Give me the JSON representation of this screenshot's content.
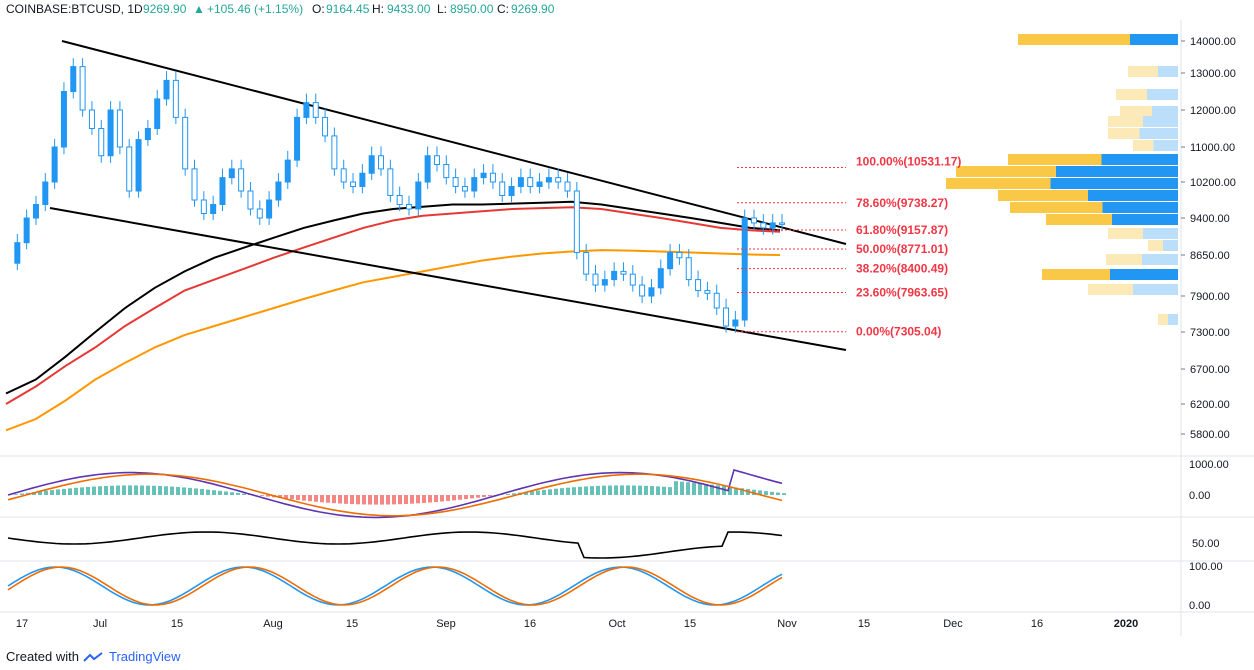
{
  "header": {
    "symbol": "COINBASE:BTCUSD, 1D",
    "last": "9269.90",
    "change": "+105.46 (+1.15%)",
    "o_label": "O:",
    "o_value": "9164.45",
    "h_label": "H:",
    "h_value": "9433.00",
    "l_label": "L:",
    "l_value": "8950.00",
    "c_label": "C:",
    "c_value": "9269.90",
    "up_color": "#26a69a"
  },
  "footer": {
    "created_with": "Created with",
    "brand": "TradingView"
  },
  "chart_data": {
    "type": "candlestick",
    "price_axis_ticks": [
      "14000.00",
      "13000.00",
      "12000.00",
      "11000.00",
      "10200.00",
      "9400.00",
      "8650.00",
      "7900.00",
      "7300.00",
      "6700.00",
      "6200.00",
      "5800.00"
    ],
    "price_axis_values": [
      14000,
      13000,
      12000,
      11000,
      10200,
      9400,
      8650,
      7900,
      7300,
      6700,
      6200,
      5800
    ],
    "time_axis_labels": [
      "17",
      "Jul",
      "15",
      "Aug",
      "15",
      "Sep",
      "16",
      "Oct",
      "15",
      "Nov",
      "15",
      "Dec",
      "16",
      "2020"
    ],
    "fibonacci": [
      {
        "label": "100.00%(10531.17)",
        "value": 10531.17
      },
      {
        "label": "78.60%(9738.27)",
        "value": 9738.27
      },
      {
        "label": "61.80%(9157.87)",
        "value": 9157.87
      },
      {
        "label": "50.00%(8771.01)",
        "value": 8771.01
      },
      {
        "label": "38.20%(8400.49)",
        "value": 8400.49
      },
      {
        "label": "23.60%(7963.65)",
        "value": 7963.65
      },
      {
        "label": "0.00%(7305.04)",
        "value": 7305.04
      }
    ],
    "series": [
      {
        "color": "#000000",
        "values": [
          6350,
          6550,
          6900,
          7300,
          7700,
          8050,
          8350,
          8600,
          8800,
          9000,
          9200,
          9350,
          9500,
          9600,
          9650,
          9700,
          9700,
          9720,
          9740,
          9760,
          9700,
          9600,
          9500,
          9400,
          9300,
          9200,
          9150
        ]
      },
      {
        "color": "#e53935",
        "values": [
          6200,
          6450,
          6750,
          7050,
          7400,
          7700,
          8000,
          8200,
          8400,
          8600,
          8800,
          9000,
          9200,
          9350,
          9450,
          9500,
          9550,
          9600,
          9620,
          9640,
          9600,
          9500,
          9400,
          9300,
          9200,
          9150,
          9120
        ]
      },
      {
        "color": "#ff9800",
        "values": [
          5850,
          6000,
          6250,
          6550,
          6800,
          7050,
          7250,
          7400,
          7550,
          7700,
          7850,
          8000,
          8150,
          8250,
          8350,
          8450,
          8550,
          8620,
          8680,
          8720,
          8750,
          8740,
          8720,
          8700,
          8680,
          8660,
          8650
        ]
      }
    ],
    "oscillator_ticks": [
      "1000.00",
      "0.00",
      "50.00",
      "100.00",
      "0.00"
    ],
    "volume_profile_colors": [
      "#2196f3",
      "#f9c846",
      "#bbdefb",
      "#fbe9b7"
    ]
  }
}
